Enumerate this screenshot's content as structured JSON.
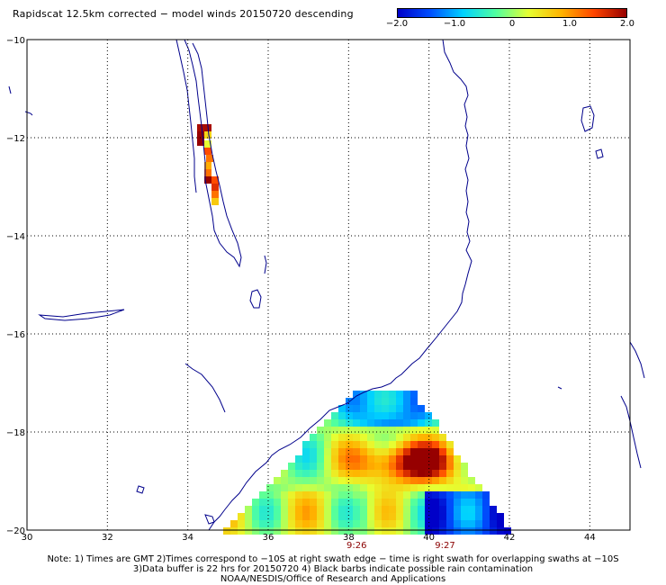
{
  "title": "Rapidscat 12.5km corrected − model winds 20150720 descending",
  "colorbar": {
    "labels": [
      "−2.0",
      "−1.0",
      "0",
      "1.0",
      "2.0"
    ],
    "label_values": [
      -2.0,
      -1.0,
      0,
      1.0,
      2.0
    ],
    "range": [
      -2.0,
      2.0
    ],
    "stops": [
      "#0000c8",
      "#0050ff",
      "#00d2ff",
      "#50ffa0",
      "#e6ff32",
      "#ffb400",
      "#ff4600",
      "#960000"
    ]
  },
  "map": {
    "lon_range": [
      30,
      45
    ],
    "lat_range": [
      -20,
      -10
    ],
    "lon_ticks": [
      "30",
      "32",
      "34",
      "36",
      "38",
      "40",
      "42",
      "44"
    ],
    "lon_tick_values": [
      30,
      32,
      34,
      36,
      38,
      40,
      42,
      44
    ],
    "lat_ticks": [
      "−10",
      "−12",
      "−14",
      "−16",
      "−18",
      "−20"
    ],
    "lat_tick_values": [
      -10,
      -12,
      -14,
      -16,
      -18,
      -20
    ],
    "grid": "dotted",
    "coastline_color": "#00008b",
    "swath_times": [
      {
        "label": "9:26",
        "lon": 38.2
      },
      {
        "label": "9:27",
        "lon": 40.4
      }
    ],
    "time_label_color": "#8b0000"
  },
  "notes": {
    "line1": "Note: 1) Times are GMT 2)Times correspond to −10S at right swath edge − time is right swath for overlapping swaths at −10S",
    "line2": "3)Data buffer is 22 hrs for 20150720 4) Black barbs indicate possible rain contamination",
    "line3": "NOAA/NESDIS/Office of Research and Applications"
  }
}
